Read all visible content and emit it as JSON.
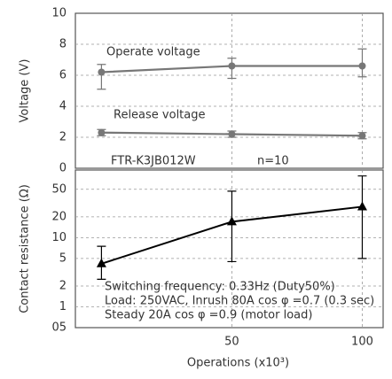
{
  "chart_data": [
    {
      "type": "line",
      "ylabel": "Voltage (V)",
      "ylim": [
        0,
        10
      ],
      "yticks": [
        0,
        2,
        4,
        6,
        8,
        10
      ],
      "grid": true,
      "annotations": [
        "FTR-K3JB012W",
        "n=10"
      ],
      "series": [
        {
          "name": "Operate voltage",
          "color": "#777777",
          "marker": "circle",
          "values": [
            6.2,
            6.6,
            6.6
          ],
          "err_low": [
            5.1,
            5.8,
            5.9
          ],
          "err_high": [
            6.7,
            7.1,
            7.7
          ]
        },
        {
          "name": "Release voltage",
          "color": "#777777",
          "marker": "circle",
          "values": [
            2.3,
            2.2,
            2.1
          ],
          "err_low": [
            2.1,
            2.0,
            1.9
          ],
          "err_high": [
            2.5,
            2.4,
            2.3
          ]
        }
      ]
    },
    {
      "type": "line",
      "ylabel": "Contact resistance (Ω)",
      "log_y": true,
      "ylim": [
        0.5,
        95
      ],
      "yticks": [
        {
          "value": 0.5,
          "label": "05"
        },
        1,
        2,
        5,
        10,
        20,
        50
      ],
      "grid": true,
      "xlabel": "Operations (x10³)",
      "x": [
        0,
        50,
        100
      ],
      "xlim": [
        -10,
        108
      ],
      "xticks": [
        50,
        100
      ],
      "annotations": [
        "Switching frequency: 0.33Hz (Duty50%)",
        "Load: 250VAC, Inrush 80A cos φ =0.7 (0.3 sec)",
        "Steady 20A cos φ =0.9 (motor load)"
      ],
      "series": [
        {
          "name": null,
          "color": "#000000",
          "marker": "triangle",
          "values": [
            4.2,
            17,
            28
          ],
          "err_low": [
            2.5,
            4.5,
            5
          ],
          "err_high": [
            7.5,
            47,
            78
          ]
        }
      ]
    }
  ]
}
